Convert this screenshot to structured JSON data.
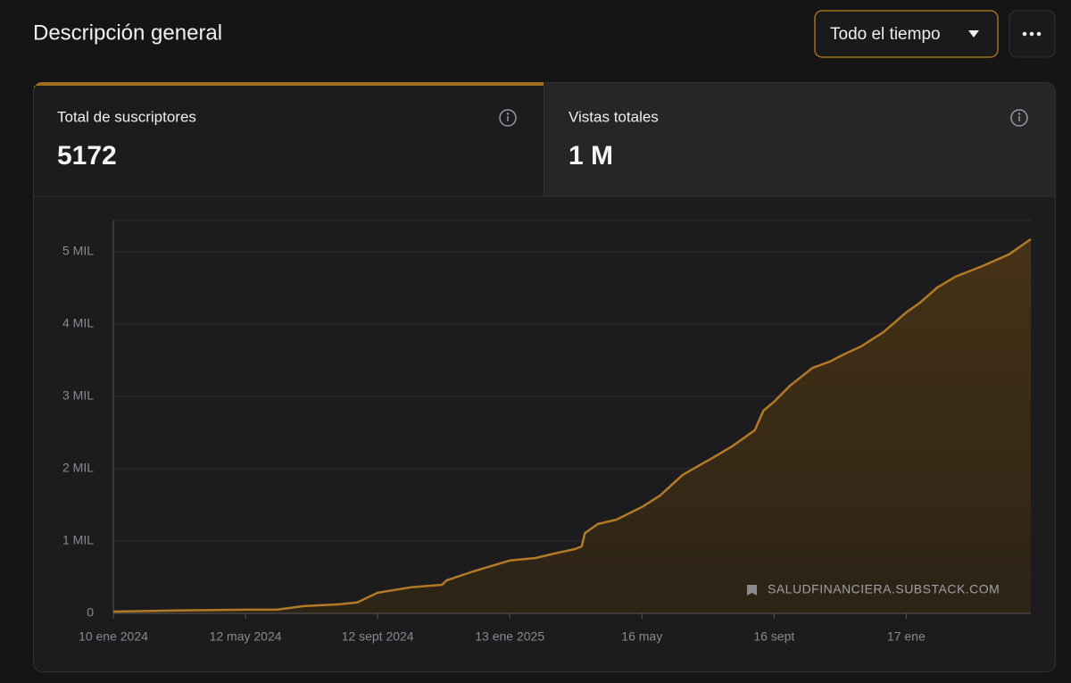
{
  "header": {
    "title": "Descripción general",
    "range_selector": "Todo el tiempo"
  },
  "stats": [
    {
      "label": "Total de suscriptores",
      "value": "5172"
    },
    {
      "label": "Vistas totales",
      "value": "1 M"
    }
  ],
  "watermark": "SALUDFINANCIERA.SUBSTACK.COM",
  "chart_data": {
    "type": "area",
    "color": "#b27a26",
    "x": [
      "2024-01-10",
      "2024-03-10",
      "2024-05-12",
      "2024-06-10",
      "2024-07-05",
      "2024-08-07",
      "2024-08-24",
      "2024-09-12",
      "2024-10-13",
      "2024-11-11",
      "2024-11-15",
      "2024-12-10",
      "2025-01-13",
      "2025-02-06",
      "2025-02-23",
      "2025-03-15",
      "2025-03-21",
      "2025-03-24",
      "2025-04-05",
      "2025-04-22",
      "2025-05-16",
      "2025-06-02",
      "2025-06-23",
      "2025-07-22",
      "2025-08-08",
      "2025-08-29",
      "2025-09-06",
      "2025-09-16",
      "2025-10-01",
      "2025-10-22",
      "2025-11-07",
      "2025-11-20",
      "2025-12-06",
      "2025-12-27",
      "2026-01-17",
      "2026-01-29",
      "2026-02-15",
      "2026-03-04",
      "2026-03-29",
      "2026-04-23",
      "2026-05-13"
    ],
    "values": [
      25,
      40,
      50,
      50,
      100,
      125,
      150,
      285,
      360,
      395,
      455,
      580,
      730,
      765,
      825,
      890,
      925,
      1110,
      1235,
      1295,
      1470,
      1630,
      1915,
      2160,
      2310,
      2530,
      2800,
      2925,
      3150,
      3395,
      3480,
      3580,
      3690,
      3890,
      4160,
      4285,
      4505,
      4655,
      4800,
      4965,
      5172
    ],
    "xlim": [
      "2024-01-10",
      "2026-05-13"
    ],
    "xticks": [
      {
        "value": "2024-01-10",
        "label": "10 ene 2024"
      },
      {
        "value": "2024-05-12",
        "label": "12 may 2024"
      },
      {
        "value": "2024-09-12",
        "label": "12 sept 2024"
      },
      {
        "value": "2025-01-13",
        "label": "13 ene 2025"
      },
      {
        "value": "2025-05-16",
        "label": "16 may"
      },
      {
        "value": "2025-09-16",
        "label": "16 sept"
      },
      {
        "value": "2026-01-17",
        "label": "17 ene"
      }
    ],
    "ylim": [
      0,
      5430
    ],
    "yticks": [
      0,
      {
        "value": 1000,
        "label": "1 MIL"
      },
      {
        "value": 2000,
        "label": "2 MIL"
      },
      {
        "value": 3000,
        "label": "3 MIL"
      },
      {
        "value": 4000,
        "label": "4 MIL"
      },
      {
        "value": 5000,
        "label": "5 MIL"
      }
    ],
    "grid": true
  }
}
